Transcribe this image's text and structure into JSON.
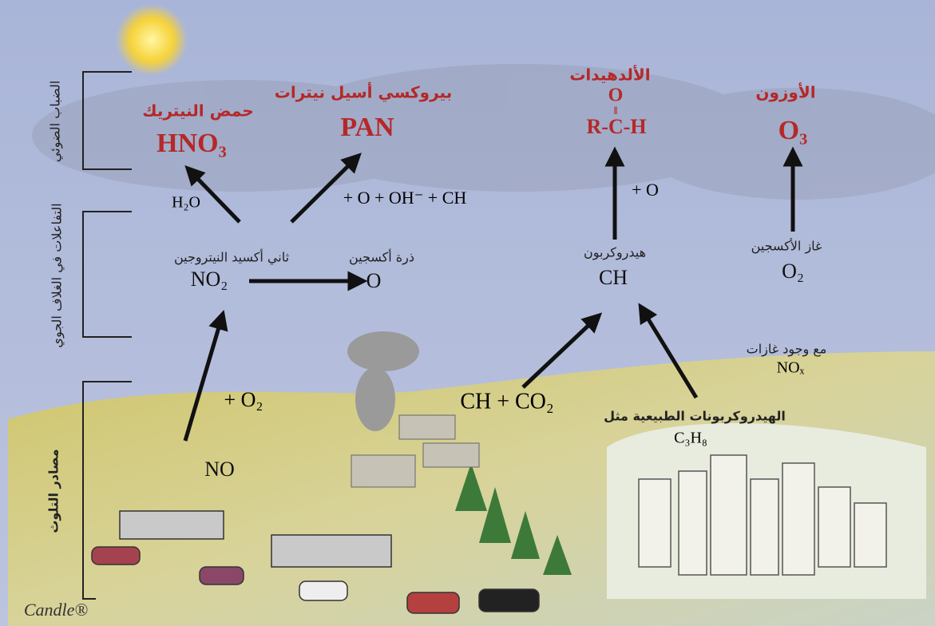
{
  "side_labels": [
    "الضباب الضوئي",
    "التفاعلات في الغلاف الجوي",
    "مصادر التلوث"
  ],
  "products": [
    {
      "name": "حمض النيتريك",
      "formula": "HNO₃"
    },
    {
      "name": "بيروكسي أسيل نيترات",
      "formula": "PAN"
    },
    {
      "name": "الألدهيدات",
      "top": "O",
      "bond": "‖",
      "formula": "R-C-H"
    },
    {
      "name": "الأوزون",
      "formula": "O₃"
    }
  ],
  "reactants": [
    {
      "name": "ثاني أكسيد النيتروجين",
      "formula": "NO₂"
    },
    {
      "name": "ذرة أكسجين",
      "formula": "O"
    },
    {
      "name": "هيدروكربون",
      "formula": "CH"
    },
    {
      "name": "غاز الأكسجين",
      "formula": "O₂"
    }
  ],
  "reaction_labels": [
    "H₂O",
    "+ O + OH⁻ + CH",
    "+ O",
    "+ O₂",
    "CH + CO₂"
  ],
  "condition": {
    "text": "مع وجود غازات",
    "formula": "NOₓ"
  },
  "sources": {
    "natural": "الهيدروكربونات الطبيعية مثل",
    "natural_formula": "C₃H₈",
    "vehicles": "NO"
  },
  "watermark": "Candle®"
}
